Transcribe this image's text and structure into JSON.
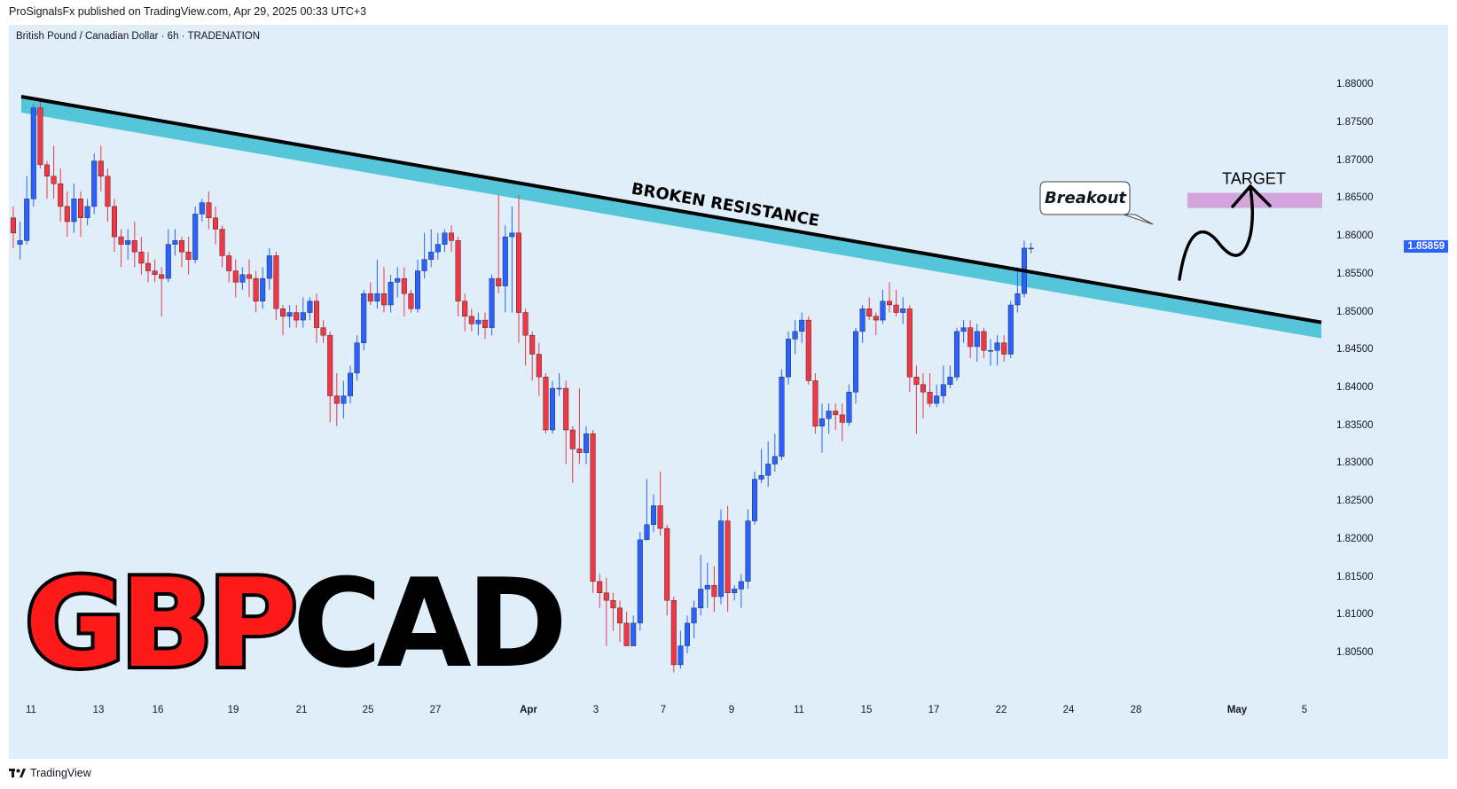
{
  "header": {
    "published": "ProSignalsFx published on TradingView.com, Apr 29, 2025 00:33 UTC+3"
  },
  "symbol": {
    "line": "British Pound / Canadian Dollar · 6h · TRADENATION"
  },
  "footer": {
    "brand": "TradingView",
    "logo_icon": "tradingview-logo-icon"
  },
  "colors": {
    "background": "#dfeef8",
    "up": "#2962ff",
    "down": "#f23645",
    "zone": "#55c6d9",
    "target_box": "#d4a4dd",
    "badge": "#2962ff"
  },
  "annotations": {
    "resistance_label": "BROKEN RESISTANCE",
    "breakout_label": "Breakout",
    "target_label": "TARGET",
    "title_part1": "GBP",
    "title_part2": "CAD"
  },
  "chart_data": {
    "type": "candlestick",
    "title": "",
    "last_price": "1.85859",
    "y_ticks": [
      "1.88000",
      "1.87500",
      "1.87000",
      "1.86500",
      "1.86000",
      "1.85500",
      "1.85000",
      "1.84500",
      "1.84000",
      "1.83500",
      "1.83000",
      "1.82500",
      "1.82000",
      "1.81500",
      "1.81000",
      "1.80500"
    ],
    "ylim": [
      1.8015,
      1.8847
    ],
    "x_ticks": [
      "11",
      "13",
      "16",
      "19",
      "21",
      "25",
      "27",
      "Apr",
      "3",
      "7",
      "9",
      "11",
      "15",
      "17",
      "22",
      "24",
      "28",
      "May",
      "5"
    ],
    "resistance_line": {
      "start": 1.8785,
      "end": 1.8487
    },
    "target_zone": [
      1.8638,
      1.8658
    ],
    "candles": [
      [
        1.8625,
        1.8605,
        1.864,
        1.8585
      ],
      [
        1.859,
        1.8595,
        1.862,
        1.857
      ],
      [
        1.8595,
        1.865,
        1.868,
        1.859
      ],
      [
        1.865,
        1.877,
        1.8775,
        1.864
      ],
      [
        1.877,
        1.8695,
        1.878,
        1.869
      ],
      [
        1.8695,
        1.868,
        1.87,
        1.865
      ],
      [
        1.868,
        1.867,
        1.872,
        1.865
      ],
      [
        1.867,
        1.864,
        1.869,
        1.862
      ],
      [
        1.864,
        1.862,
        1.866,
        1.86
      ],
      [
        1.862,
        1.865,
        1.867,
        1.8605
      ],
      [
        1.865,
        1.8625,
        1.866,
        1.86
      ],
      [
        1.8625,
        1.864,
        1.865,
        1.8615
      ],
      [
        1.864,
        1.87,
        1.871,
        1.863
      ],
      [
        1.87,
        1.868,
        1.872,
        1.866
      ],
      [
        1.868,
        1.864,
        1.869,
        1.862
      ],
      [
        1.864,
        1.86,
        1.865,
        1.858
      ],
      [
        1.86,
        1.859,
        1.861,
        1.856
      ],
      [
        1.859,
        1.8595,
        1.861,
        1.857
      ],
      [
        1.8595,
        1.858,
        1.862,
        1.856
      ],
      [
        1.858,
        1.8565,
        1.86,
        1.855
      ],
      [
        1.8565,
        1.8555,
        1.858,
        1.854
      ],
      [
        1.8555,
        1.855,
        1.857,
        1.854
      ],
      [
        1.855,
        1.8545,
        1.856,
        1.8495
      ],
      [
        1.8545,
        1.859,
        1.861,
        1.854
      ],
      [
        1.859,
        1.8595,
        1.861,
        1.8575
      ],
      [
        1.8595,
        1.858,
        1.86,
        1.856
      ],
      [
        1.858,
        1.857,
        1.86,
        1.855
      ],
      [
        1.857,
        1.863,
        1.864,
        1.8565
      ],
      [
        1.863,
        1.8645,
        1.865,
        1.862
      ],
      [
        1.8645,
        1.8625,
        1.866,
        1.861
      ],
      [
        1.8625,
        1.861,
        1.864,
        1.859
      ],
      [
        1.861,
        1.8575,
        1.8615,
        1.856
      ],
      [
        1.8575,
        1.8555,
        1.858,
        1.854
      ],
      [
        1.8555,
        1.854,
        1.857,
        1.852
      ],
      [
        1.854,
        1.855,
        1.856,
        1.853
      ],
      [
        1.855,
        1.8545,
        1.857,
        1.852
      ],
      [
        1.8545,
        1.8515,
        1.8555,
        1.85
      ],
      [
        1.8515,
        1.8545,
        1.856,
        1.8505
      ],
      [
        1.8545,
        1.8575,
        1.8585,
        1.853
      ],
      [
        1.8575,
        1.8505,
        1.858,
        1.849
      ],
      [
        1.8505,
        1.8495,
        1.851,
        1.847
      ],
      [
        1.8495,
        1.85,
        1.851,
        1.848
      ],
      [
        1.85,
        1.849,
        1.851,
        1.848
      ],
      [
        1.849,
        1.85,
        1.852,
        1.848
      ],
      [
        1.85,
        1.8515,
        1.852,
        1.849
      ],
      [
        1.8515,
        1.848,
        1.8525,
        1.846
      ],
      [
        1.848,
        1.847,
        1.849,
        1.846
      ],
      [
        1.847,
        1.839,
        1.8475,
        1.8355
      ],
      [
        1.839,
        1.838,
        1.842,
        1.835
      ],
      [
        1.838,
        1.839,
        1.841,
        1.836
      ],
      [
        1.839,
        1.842,
        1.843,
        1.838
      ],
      [
        1.842,
        1.846,
        1.847,
        1.841
      ],
      [
        1.846,
        1.8525,
        1.853,
        1.845
      ],
      [
        1.8525,
        1.8515,
        1.854,
        1.851
      ],
      [
        1.8515,
        1.8525,
        1.857,
        1.8505
      ],
      [
        1.8525,
        1.851,
        1.856,
        1.85
      ],
      [
        1.851,
        1.854,
        1.855,
        1.85
      ],
      [
        1.854,
        1.8545,
        1.856,
        1.852
      ],
      [
        1.8545,
        1.8525,
        1.856,
        1.8495
      ],
      [
        1.8525,
        1.8505,
        1.853,
        1.85
      ],
      [
        1.8505,
        1.8555,
        1.857,
        1.85
      ],
      [
        1.8555,
        1.857,
        1.8605,
        1.8545
      ],
      [
        1.857,
        1.858,
        1.861,
        1.856
      ],
      [
        1.858,
        1.859,
        1.8605,
        1.857
      ],
      [
        1.859,
        1.8605,
        1.861,
        1.858
      ],
      [
        1.8605,
        1.8595,
        1.8615,
        1.858
      ],
      [
        1.8595,
        1.8515,
        1.86,
        1.8495
      ],
      [
        1.8515,
        1.8495,
        1.8525,
        1.8475
      ],
      [
        1.8495,
        1.8485,
        1.8505,
        1.8475
      ],
      [
        1.8485,
        1.849,
        1.85,
        1.847
      ],
      [
        1.849,
        1.848,
        1.85,
        1.8465
      ],
      [
        1.848,
        1.8545,
        1.855,
        1.847
      ],
      [
        1.8545,
        1.8535,
        1.8655,
        1.8525
      ],
      [
        1.8535,
        1.86,
        1.8615,
        1.85
      ],
      [
        1.86,
        1.8605,
        1.864,
        1.85
      ],
      [
        1.8605,
        1.85,
        1.8655,
        1.846
      ],
      [
        1.85,
        1.847,
        1.8505,
        1.843
      ],
      [
        1.847,
        1.8445,
        1.8475,
        1.841
      ],
      [
        1.8445,
        1.8415,
        1.846,
        1.839
      ],
      [
        1.8415,
        1.8345,
        1.842,
        1.834
      ],
      [
        1.8345,
        1.84,
        1.841,
        1.834
      ],
      [
        1.84,
        1.84,
        1.842,
        1.839
      ],
      [
        1.84,
        1.8345,
        1.841,
        1.83
      ],
      [
        1.8345,
        1.832,
        1.835,
        1.8275
      ],
      [
        1.832,
        1.8315,
        1.84,
        1.83
      ],
      [
        1.8315,
        1.834,
        1.835,
        1.83
      ],
      [
        1.834,
        1.8145,
        1.8345,
        1.813
      ],
      [
        1.8145,
        1.813,
        1.8155,
        1.811
      ],
      [
        1.813,
        1.812,
        1.815,
        1.806
      ],
      [
        1.812,
        1.811,
        1.813,
        1.808
      ],
      [
        1.811,
        1.809,
        1.812,
        1.8065
      ],
      [
        1.809,
        1.806,
        1.8105,
        1.806
      ],
      [
        1.806,
        1.809,
        1.81,
        1.806
      ],
      [
        1.809,
        1.82,
        1.821,
        1.808
      ],
      [
        1.82,
        1.822,
        1.828,
        1.82
      ],
      [
        1.822,
        1.8245,
        1.826,
        1.821
      ],
      [
        1.8245,
        1.8215,
        1.829,
        1.8205
      ],
      [
        1.8215,
        1.812,
        1.822,
        1.81
      ],
      [
        1.812,
        1.8035,
        1.8125,
        1.8025
      ],
      [
        1.8035,
        1.806,
        1.808,
        1.803
      ],
      [
        1.806,
        1.809,
        1.81,
        1.805
      ],
      [
        1.809,
        1.811,
        1.812,
        1.807
      ],
      [
        1.811,
        1.8135,
        1.818,
        1.81
      ],
      [
        1.8135,
        1.814,
        1.817,
        1.811
      ],
      [
        1.814,
        1.8125,
        1.8165,
        1.8105
      ],
      [
        1.8125,
        1.8225,
        1.824,
        1.8115
      ],
      [
        1.8225,
        1.813,
        1.8245,
        1.8105
      ],
      [
        1.813,
        1.8135,
        1.814,
        1.812
      ],
      [
        1.8135,
        1.8145,
        1.8155,
        1.811
      ],
      [
        1.8145,
        1.8225,
        1.824,
        1.8135
      ],
      [
        1.8225,
        1.828,
        1.829,
        1.822
      ],
      [
        1.828,
        1.8285,
        1.832,
        1.8275
      ],
      [
        1.8285,
        1.83,
        1.833,
        1.827
      ],
      [
        1.83,
        1.831,
        1.834,
        1.829
      ],
      [
        1.831,
        1.8415,
        1.8425,
        1.8305
      ],
      [
        1.8415,
        1.8465,
        1.8475,
        1.8405
      ],
      [
        1.8465,
        1.8475,
        1.849,
        1.8445
      ],
      [
        1.8475,
        1.849,
        1.85,
        1.846
      ],
      [
        1.849,
        1.841,
        1.8495,
        1.8405
      ],
      [
        1.841,
        1.835,
        1.842,
        1.834
      ],
      [
        1.835,
        1.836,
        1.838,
        1.8315
      ],
      [
        1.836,
        1.837,
        1.838,
        1.834
      ],
      [
        1.837,
        1.8365,
        1.838,
        1.8345
      ],
      [
        1.8365,
        1.8355,
        1.838,
        1.833
      ],
      [
        1.8355,
        1.8395,
        1.8405,
        1.835
      ],
      [
        1.8395,
        1.8475,
        1.848,
        1.838
      ],
      [
        1.8475,
        1.8505,
        1.851,
        1.846
      ],
      [
        1.8505,
        1.8495,
        1.852,
        1.849
      ],
      [
        1.8495,
        1.849,
        1.85,
        1.847
      ],
      [
        1.849,
        1.8515,
        1.853,
        1.8485
      ],
      [
        1.8515,
        1.851,
        1.854,
        1.85
      ],
      [
        1.851,
        1.85,
        1.853,
        1.8495
      ],
      [
        1.85,
        1.8505,
        1.852,
        1.8485
      ],
      [
        1.8505,
        1.8415,
        1.851,
        1.8395
      ],
      [
        1.8415,
        1.8405,
        1.843,
        1.834
      ],
      [
        1.8405,
        1.8395,
        1.842,
        1.836
      ],
      [
        1.8395,
        1.838,
        1.842,
        1.8375
      ],
      [
        1.838,
        1.839,
        1.8405,
        1.8375
      ],
      [
        1.839,
        1.8405,
        1.843,
        1.838
      ],
      [
        1.8405,
        1.8415,
        1.843,
        1.84
      ],
      [
        1.8415,
        1.8475,
        1.848,
        1.841
      ],
      [
        1.8475,
        1.848,
        1.849,
        1.846
      ],
      [
        1.848,
        1.8455,
        1.849,
        1.844
      ],
      [
        1.8455,
        1.8475,
        1.8485,
        1.8435
      ],
      [
        1.8475,
        1.845,
        1.848,
        1.844
      ],
      [
        1.845,
        1.845,
        1.8465,
        1.843
      ],
      [
        1.845,
        1.846,
        1.847,
        1.843
      ],
      [
        1.846,
        1.8445,
        1.847,
        1.8435
      ],
      [
        1.8445,
        1.851,
        1.8515,
        1.844
      ],
      [
        1.851,
        1.8525,
        1.856,
        1.85
      ],
      [
        1.8525,
        1.8585,
        1.8595,
        1.852
      ],
      [
        1.8585,
        1.8585,
        1.8592,
        1.8578
      ]
    ]
  }
}
